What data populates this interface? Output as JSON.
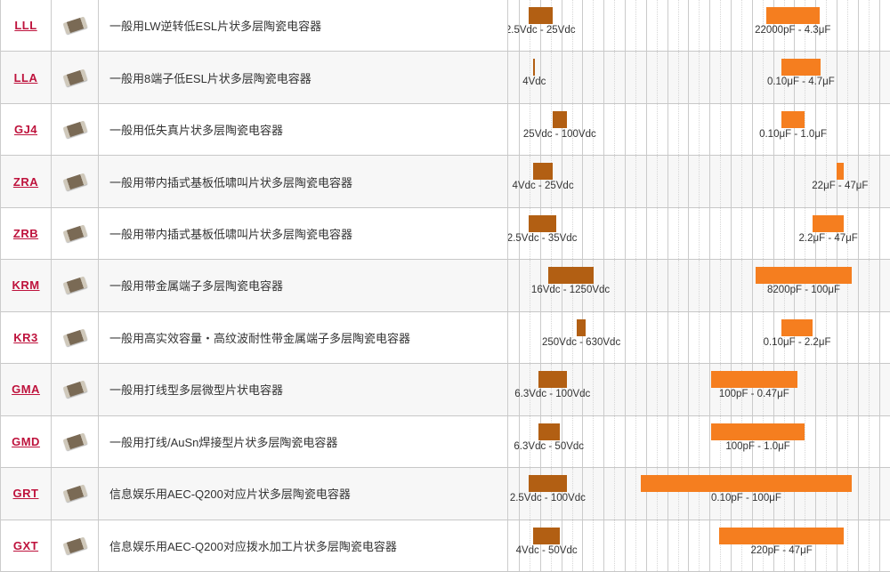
{
  "colors": {
    "voltage_bar": "#B25F13",
    "capacitance_bar": "#F57E1F",
    "series_link": "#BE123C",
    "row_stripe": "#F7F7F7",
    "gridline": "#CBCBCB"
  },
  "rows": [
    {
      "code": "LLL",
      "description": "一般用LW逆转低ESL片状多层陶瓷电容器",
      "voltage": {
        "label": "2.5Vdc - 25Vdc",
        "min": 2.5,
        "max": 25
      },
      "capacitance": {
        "label": "22000pF - 4.3μF",
        "min_pf": 22000,
        "max_pf": 4300000
      }
    },
    {
      "code": "LLA",
      "description": "一般用8端子低ESL片状多层陶瓷电容器",
      "voltage": {
        "label": "4Vdc",
        "min": 4,
        "max": 4
      },
      "capacitance": {
        "label": "0.10μF - 4.7μF",
        "min_pf": 100000,
        "max_pf": 4700000
      }
    },
    {
      "code": "GJ4",
      "description": "一般用低失真片状多层陶瓷电容器",
      "voltage": {
        "label": "25Vdc - 100Vdc",
        "min": 25,
        "max": 100
      },
      "capacitance": {
        "label": "0.10μF - 1.0μF",
        "min_pf": 100000,
        "max_pf": 1000000
      }
    },
    {
      "code": "ZRA",
      "description": "一般用带内插式基板低啸叫片状多层陶瓷电容器",
      "voltage": {
        "label": "4Vdc - 25Vdc",
        "min": 4,
        "max": 25
      },
      "capacitance": {
        "label": "22μF - 47μF",
        "min_pf": 22000000,
        "max_pf": 47000000
      }
    },
    {
      "code": "ZRB",
      "description": "一般用带内插式基板低啸叫片状多层陶瓷电容器",
      "voltage": {
        "label": "2.5Vdc - 35Vdc",
        "min": 2.5,
        "max": 35
      },
      "capacitance": {
        "label": "2.2μF - 47μF",
        "min_pf": 2200000,
        "max_pf": 47000000
      }
    },
    {
      "code": "KRM",
      "description": "一般用带金属端子多层陶瓷电容器",
      "voltage": {
        "label": "16Vdc - 1250Vdc",
        "min": 16,
        "max": 1250
      },
      "capacitance": {
        "label": "8200pF - 100μF",
        "min_pf": 8200,
        "max_pf": 100000000
      }
    },
    {
      "code": "KR3",
      "description": "一般用高实效容量・高纹波耐性带金属端子多层陶瓷电容器",
      "voltage": {
        "label": "250Vdc - 630Vdc",
        "min": 250,
        "max": 630
      },
      "capacitance": {
        "label": "0.10μF - 2.2μF",
        "min_pf": 100000,
        "max_pf": 2200000
      }
    },
    {
      "code": "GMA",
      "description": "一般用打线型多层微型片状电容器",
      "voltage": {
        "label": "6.3Vdc - 100Vdc",
        "min": 6.3,
        "max": 100
      },
      "capacitance": {
        "label": "100pF - 0.47μF",
        "min_pf": 100,
        "max_pf": 470000
      }
    },
    {
      "code": "GMD",
      "description": "一般用打线/AuSn焊接型片状多层陶瓷电容器",
      "voltage": {
        "label": "6.3Vdc - 50Vdc",
        "min": 6.3,
        "max": 50
      },
      "capacitance": {
        "label": "100pF - 1.0μF",
        "min_pf": 100,
        "max_pf": 1000000
      }
    },
    {
      "code": "GRT",
      "description": "信息娱乐用AEC-Q200对应片状多层陶瓷电容器",
      "voltage": {
        "label": "2.5Vdc - 100Vdc",
        "min": 2.5,
        "max": 100
      },
      "capacitance": {
        "label": "0.10pF - 100μF",
        "min_pf": 0.1,
        "max_pf": 100000000
      }
    },
    {
      "code": "GXT",
      "description": "信息娱乐用AEC-Q200对应拨水加工片状多层陶瓷电容器",
      "voltage": {
        "label": "4Vdc - 50Vdc",
        "min": 4,
        "max": 50
      },
      "capacitance": {
        "label": "220pF - 47μF",
        "min_pf": 220,
        "max_pf": 47000000
      }
    }
  ],
  "chart_data": {
    "type": "bar",
    "subtype": "horizontal_range_bars",
    "x_scale": "log",
    "grid": true,
    "categories": [
      "LLL",
      "LLA",
      "GJ4",
      "ZRA",
      "ZRB",
      "KRM",
      "KR3",
      "GMA",
      "GMD",
      "GRT",
      "GXT"
    ],
    "series": [
      {
        "name": "rated_voltage",
        "unit": "Vdc",
        "color": "#B25F13",
        "ranges": [
          [
            2.5,
            25
          ],
          [
            4,
            4
          ],
          [
            25,
            100
          ],
          [
            4,
            25
          ],
          [
            2.5,
            35
          ],
          [
            16,
            1250
          ],
          [
            250,
            630
          ],
          [
            6.3,
            100
          ],
          [
            6.3,
            50
          ],
          [
            2.5,
            100
          ],
          [
            4,
            50
          ]
        ],
        "labels": [
          "2.5Vdc - 25Vdc",
          "4Vdc",
          "25Vdc - 100Vdc",
          "4Vdc - 25Vdc",
          "2.5Vdc - 35Vdc",
          "16Vdc - 1250Vdc",
          "250Vdc - 630Vdc",
          "6.3Vdc - 100Vdc",
          "6.3Vdc - 50Vdc",
          "2.5Vdc - 100Vdc",
          "4Vdc - 50Vdc"
        ]
      },
      {
        "name": "capacitance",
        "unit": "pF",
        "color": "#F57E1F",
        "ranges": [
          [
            22000,
            4300000
          ],
          [
            100000,
            4700000
          ],
          [
            100000,
            1000000
          ],
          [
            22000000,
            47000000
          ],
          [
            2200000,
            47000000
          ],
          [
            8200,
            100000000
          ],
          [
            100000,
            2200000
          ],
          [
            100,
            470000
          ],
          [
            100,
            1000000
          ],
          [
            0.1,
            100000000
          ],
          [
            220,
            47000000
          ]
        ],
        "labels": [
          "22000pF - 4.3μF",
          "0.10μF - 4.7μF",
          "0.10μF - 1.0μF",
          "22μF - 47μF",
          "2.2μF - 47μF",
          "8200pF - 100μF",
          "0.10μF - 2.2μF",
          "100pF - 0.47μF",
          "100pF - 1.0μF",
          "0.10pF - 100μF",
          "220pF - 47μF"
        ]
      }
    ]
  }
}
